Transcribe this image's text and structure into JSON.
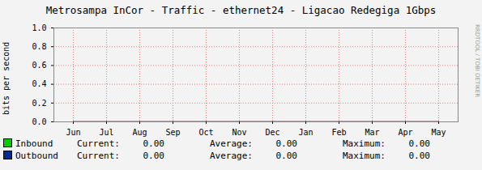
{
  "chart_data": {
    "type": "line",
    "title": "Metrosampa InCor - Traffic - ethernet24 - Ligacao Redegiga 1Gbps",
    "y_label": "bits per second",
    "categories": [
      "Jun",
      "Jul",
      "Aug",
      "Sep",
      "Oct",
      "Nov",
      "Dec",
      "Jan",
      "Feb",
      "Mar",
      "Apr",
      "May"
    ],
    "series": [
      {
        "name": "Inbound",
        "color": "#00cc00",
        "values": [
          0,
          0,
          0,
          0,
          0,
          0,
          0,
          0,
          0,
          0,
          0,
          0
        ],
        "stats": [
          {
            "name": "Current:",
            "value": 0,
            "label": "0.00"
          },
          {
            "name": "Average:",
            "value": 0,
            "label": "0.00"
          },
          {
            "name": "Maximum:",
            "value": 0,
            "label": "0.00"
          }
        ]
      },
      {
        "name": "Outbound",
        "color": "#002a97",
        "values": [
          0,
          0,
          0,
          0,
          0,
          0,
          0,
          0,
          0,
          0,
          0,
          0
        ],
        "stats": [
          {
            "name": "Current:",
            "value": 0,
            "label": "0.00"
          },
          {
            "name": "Average:",
            "value": 0,
            "label": "0.00"
          },
          {
            "name": "Maximum:",
            "value": 0,
            "label": "0.00"
          }
        ]
      }
    ],
    "ylim": [
      0,
      1
    ],
    "yticks": [
      {
        "value": 0,
        "label": "0.0"
      },
      {
        "value": 0.2,
        "label": "0.2"
      },
      {
        "value": 0.4,
        "label": "0.4"
      },
      {
        "value": 0.6,
        "label": "0.6"
      },
      {
        "value": 0.8,
        "label": "0.8"
      },
      {
        "value": 1,
        "label": "1.0"
      }
    ],
    "grid": true,
    "legend": "bottom",
    "annotations": [
      "RRDTOOL / TOBI OETIKER"
    ]
  }
}
